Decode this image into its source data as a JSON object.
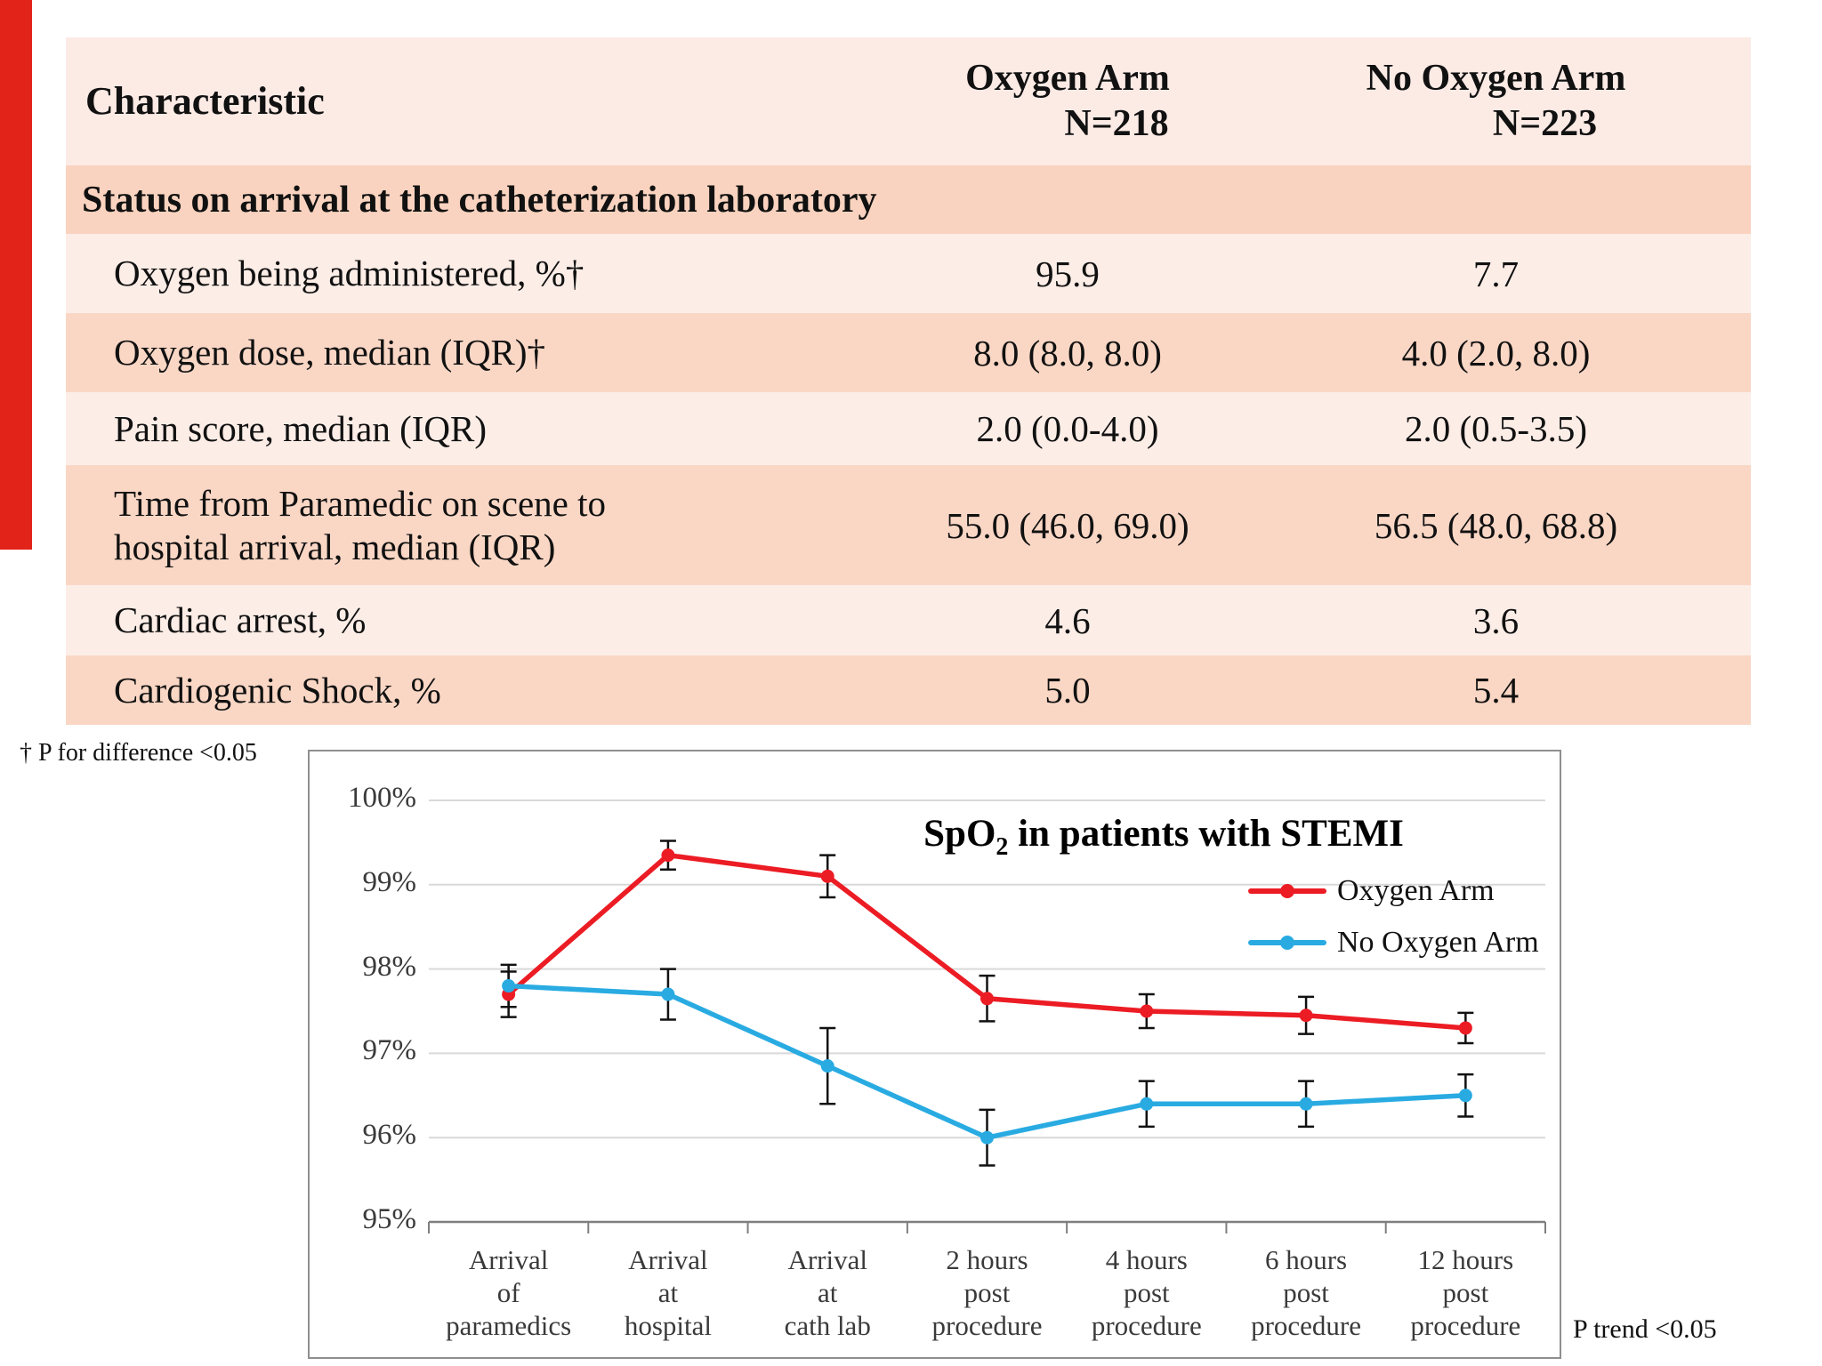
{
  "accent_color": "#e2231a",
  "table": {
    "header": {
      "characteristic": "Characteristic",
      "oxygen_arm_line1": "Oxygen Arm",
      "oxygen_arm_line2": "N=218",
      "no_oxygen_arm_line1": "No Oxygen Arm",
      "no_oxygen_arm_line2": "N=223"
    },
    "section_header": "Status on arrival at the catheterization laboratory",
    "rows": [
      {
        "label": "Oxygen being administered, %†",
        "oxygen": "95.9",
        "no_oxygen": "7.7"
      },
      {
        "label": "Oxygen dose, median (IQR)†",
        "oxygen": "8.0 (8.0, 8.0)",
        "no_oxygen": "4.0 (2.0, 8.0)"
      },
      {
        "label": "Pain score, median (IQR)",
        "oxygen": "2.0 (0.0-4.0)",
        "no_oxygen": "2.0 (0.5-3.5)"
      },
      {
        "label": "Time from Paramedic on scene to hospital arrival, median (IQR)",
        "oxygen": "55.0 (46.0, 69.0)",
        "no_oxygen": "56.5 (48.0, 68.8)"
      },
      {
        "label": "Cardiac arrest, %",
        "oxygen": "4.6",
        "no_oxygen": "3.6"
      },
      {
        "label": "Cardiogenic Shock, %",
        "oxygen": "5.0",
        "no_oxygen": "5.4"
      }
    ],
    "colors": {
      "header_bg": "#fceae5",
      "section_bg": "#f9d3bf",
      "row_light": "#fcede7",
      "row_dark": "#fad7c5"
    }
  },
  "footnote": "†  P for difference <0.05",
  "chart_note": "P trend <0.05",
  "chart_data": {
    "type": "line",
    "title": "SpO2 in patients with STEMI",
    "title_prefix": "SpO",
    "title_subscript": "2",
    "title_suffix": " in patients with STEMI",
    "categories": [
      "Arrival\nof\nparamedics",
      "Arrival\nat\nhospital",
      "Arrival\nat\ncath lab",
      "2 hours\npost\nprocedure",
      "4 hours\npost\nprocedure",
      "6 hours\npost\nprocedure",
      "12 hours\npost\nprocedure"
    ],
    "series": [
      {
        "name": "Oxygen Arm",
        "color": "#ec1c24",
        "values": [
          97.7,
          99.35,
          99.1,
          97.65,
          97.5,
          97.45,
          97.3
        ],
        "errors": [
          0.27,
          0.17,
          0.25,
          0.27,
          0.2,
          0.22,
          0.18
        ]
      },
      {
        "name": "No Oxygen Arm",
        "color": "#29abe2",
        "values": [
          97.8,
          97.7,
          96.85,
          96.0,
          96.4,
          96.4,
          96.5
        ],
        "errors": [
          0.25,
          0.3,
          0.45,
          0.33,
          0.27,
          0.27,
          0.25
        ]
      }
    ],
    "ylim": [
      95,
      100
    ],
    "yticks": [
      100,
      99,
      98,
      97,
      96,
      95
    ],
    "ytick_suffix": "%",
    "grid": true,
    "legend_position": "top-right",
    "error_bar_color": "#111111"
  }
}
